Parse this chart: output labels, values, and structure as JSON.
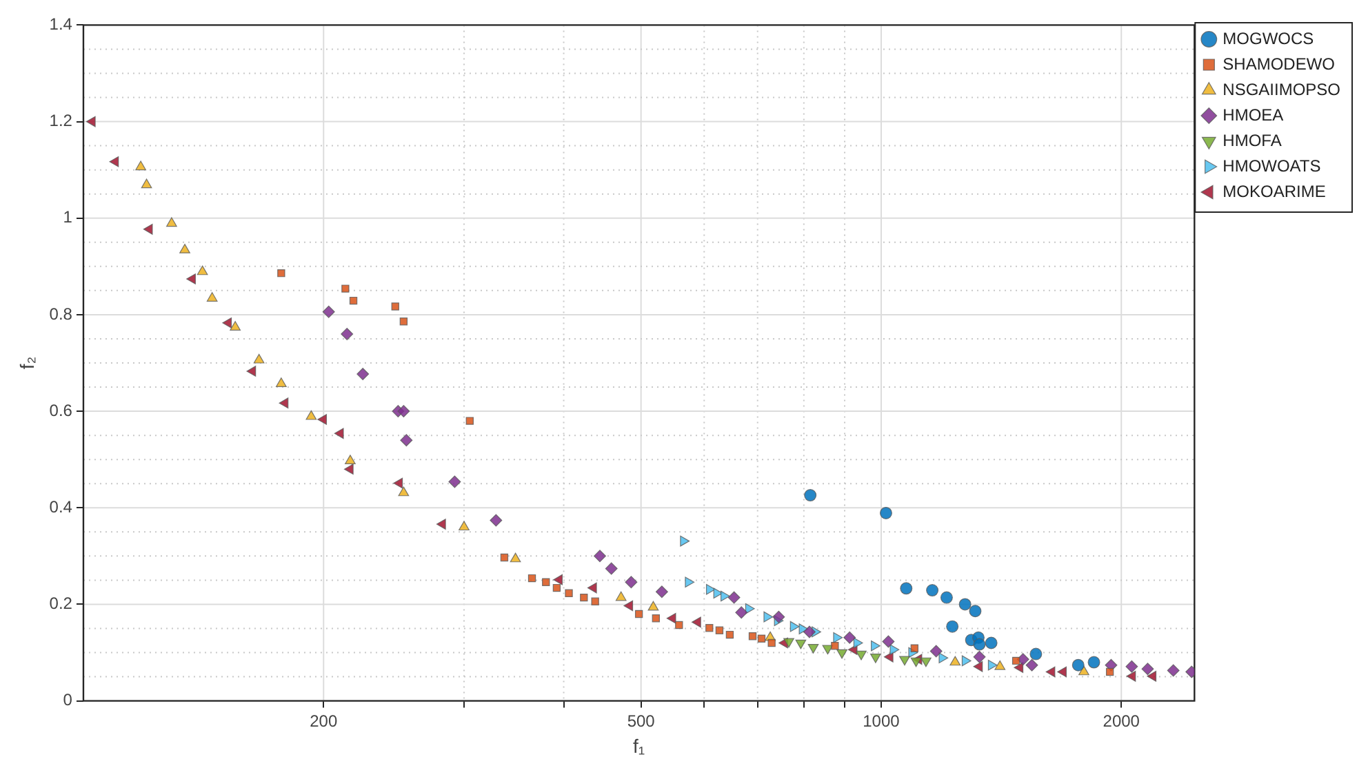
{
  "chart_data": {
    "type": "scatter",
    "xlabel": "f₁",
    "ylabel": "f₂",
    "log": "x",
    "grid": true,
    "legend": "top right",
    "xlim": [
      100,
      2470
    ],
    "xticks": [
      {
        "value": 200,
        "label": "200"
      },
      {
        "value": 300,
        "label": null
      },
      {
        "value": 400,
        "label": null
      },
      {
        "value": 500,
        "label": "500"
      },
      {
        "value": 600,
        "label": null
      },
      {
        "value": 700,
        "label": null
      },
      {
        "value": 800,
        "label": null
      },
      {
        "value": 900,
        "label": null
      },
      {
        "value": 1000,
        "label": "1000"
      },
      {
        "value": 2000,
        "label": "2000"
      }
    ],
    "ylim": [
      0,
      1.4
    ],
    "yticks": [
      0,
      {
        "value": 0.05,
        "label": null
      },
      {
        "value": 0.1,
        "label": null
      },
      {
        "value": 0.15,
        "label": null
      },
      0.2,
      {
        "value": 0.25,
        "label": null
      },
      {
        "value": 0.3,
        "label": null
      },
      {
        "value": 0.35,
        "label": null
      },
      0.4,
      {
        "value": 0.45,
        "label": null
      },
      {
        "value": 0.5,
        "label": null
      },
      {
        "value": 0.55,
        "label": null
      },
      0.6,
      {
        "value": 0.65,
        "label": null
      },
      {
        "value": 0.7,
        "label": null
      },
      {
        "value": 0.75,
        "label": null
      },
      0.8,
      {
        "value": 0.85,
        "label": null
      },
      {
        "value": 0.9,
        "label": null
      },
      {
        "value": 0.95,
        "label": null
      },
      1,
      {
        "value": 1.05,
        "label": null
      },
      {
        "value": 1.1,
        "label": null
      },
      {
        "value": 1.15,
        "label": null
      },
      1.2,
      {
        "value": 1.25,
        "label": null
      },
      {
        "value": 1.3,
        "label": null
      },
      {
        "value": 1.35,
        "label": null
      },
      1.4
    ],
    "series": [
      {
        "name": "MOGWOCS",
        "color": "#0072bd",
        "marker": "circle",
        "x": [
          815,
          1014,
          1075,
          1159,
          1208,
          1228,
          1274,
          1312,
          1297,
          1324,
          1328,
          1374,
          1563,
          1766,
          1848
        ],
        "values": [
          0.426,
          0.389,
          0.233,
          0.229,
          0.214,
          0.154,
          0.2,
          0.186,
          0.126,
          0.131,
          0.117,
          0.12,
          0.097,
          0.074,
          0.08
        ]
      },
      {
        "name": "SHAMODEWO",
        "color": "#d95319",
        "marker": "square",
        "x": [
          177,
          213,
          218,
          246,
          252,
          305,
          337,
          365,
          380,
          392,
          406,
          424,
          438,
          497,
          522,
          558,
          609,
          627,
          646,
          690,
          708,
          729,
          875,
          1101,
          1476,
          1935
        ],
        "values": [
          0.886,
          0.854,
          0.829,
          0.817,
          0.786,
          0.58,
          0.297,
          0.254,
          0.246,
          0.234,
          0.223,
          0.214,
          0.206,
          0.18,
          0.171,
          0.157,
          0.151,
          0.146,
          0.137,
          0.134,
          0.129,
          0.12,
          0.114,
          0.109,
          0.083,
          0.06
        ]
      },
      {
        "name": "NSGAIIMOPSO",
        "color": "#edb120",
        "marker": "triangle",
        "x": [
          118,
          120,
          129,
          134,
          141,
          145,
          155,
          166,
          177,
          193,
          216,
          252,
          300,
          348,
          472,
          518,
          726,
          1238,
          1409,
          1795
        ],
        "values": [
          1.106,
          1.069,
          0.989,
          0.934,
          0.889,
          0.834,
          0.774,
          0.706,
          0.657,
          0.589,
          0.497,
          0.431,
          0.36,
          0.294,
          0.214,
          0.194,
          0.131,
          0.08,
          0.071,
          0.06
        ]
      },
      {
        "name": "HMOEA",
        "color": "#7e2f8e",
        "marker": "diamond",
        "x": [
          203,
          214,
          224,
          248,
          252,
          254,
          292,
          329,
          444,
          459,
          486,
          531,
          654,
          668,
          744,
          813,
          913,
          1021,
          1172,
          1328,
          1506,
          1545,
          1942,
          2061,
          2158,
          2324,
          2450
        ],
        "values": [
          0.806,
          0.76,
          0.677,
          0.6,
          0.6,
          0.54,
          0.454,
          0.374,
          0.3,
          0.274,
          0.246,
          0.226,
          0.214,
          0.183,
          0.174,
          0.143,
          0.131,
          0.123,
          0.103,
          0.091,
          0.086,
          0.074,
          0.074,
          0.071,
          0.066,
          0.063,
          0.06
        ]
      },
      {
        "name": "HMOFA",
        "color": "#77ac30",
        "marker": "triangle-down",
        "x": [
          766,
          793,
          822,
          857,
          893,
          944,
          984,
          1070,
          1106,
          1138
        ],
        "values": [
          0.123,
          0.12,
          0.111,
          0.109,
          0.1,
          0.097,
          0.091,
          0.086,
          0.083,
          0.083
        ]
      },
      {
        "name": "HMOWOATS",
        "color": "#4dbeee",
        "marker": "triangle-right",
        "x": [
          565,
          573,
          609,
          622,
          635,
          682,
          719,
          741,
          776,
          796,
          826,
          879,
          932,
          980,
          1035,
          1092,
          1192,
          1274,
          1374
        ],
        "values": [
          0.331,
          0.246,
          0.231,
          0.223,
          0.217,
          0.191,
          0.174,
          0.166,
          0.154,
          0.149,
          0.143,
          0.131,
          0.12,
          0.114,
          0.106,
          0.1,
          0.089,
          0.083,
          0.074
        ]
      },
      {
        "name": "MOKOARIME",
        "color": "#a2142f",
        "marker": "triangle-left",
        "x": [
          102.6,
          109.7,
          121,
          137,
          152,
          163,
          179,
          200,
          210,
          216,
          249,
          282,
          395,
          436,
          484,
          548,
          589,
          757,
          925,
          1026,
          1115,
          1328,
          1493,
          1637,
          1692,
          2066,
          2192
        ],
        "values": [
          1.2,
          1.117,
          0.977,
          0.874,
          0.783,
          0.683,
          0.617,
          0.583,
          0.554,
          0.48,
          0.451,
          0.366,
          0.251,
          0.234,
          0.197,
          0.171,
          0.163,
          0.12,
          0.106,
          0.091,
          0.086,
          0.071,
          0.069,
          0.06,
          0.06,
          0.051,
          0.051
        ]
      }
    ]
  }
}
